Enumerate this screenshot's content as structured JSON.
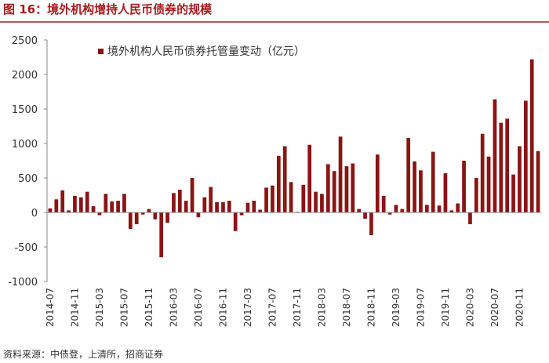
{
  "page_title": "图 16：境外机构增持人民币债券的规模",
  "source": "资料来源：中债登，上清所，招商证券",
  "chart_data": {
    "type": "bar",
    "categories": [
      "2014-07",
      null,
      null,
      null,
      "2014-11",
      null,
      null,
      null,
      "2015-03",
      null,
      null,
      null,
      "2015-07",
      null,
      null,
      null,
      "2015-11",
      null,
      null,
      null,
      "2016-03",
      null,
      null,
      null,
      "2016-07",
      null,
      null,
      null,
      "2016-11",
      null,
      null,
      null,
      "2017-03",
      null,
      null,
      null,
      "2017-07",
      null,
      null,
      null,
      "2017-11",
      null,
      null,
      null,
      "2018-03",
      null,
      null,
      null,
      "2018-07",
      null,
      null,
      null,
      "2018-11",
      null,
      null,
      null,
      "2019-03",
      null,
      null,
      null,
      "2019-07",
      null,
      null,
      null,
      "2019-11",
      null,
      null,
      null,
      "2020-03",
      null,
      null,
      null,
      "2020-07",
      null,
      null,
      null,
      "2020-11",
      null,
      null,
      null
    ],
    "series": [
      {
        "name": "境外机构人民币债券托管量变动（亿元）",
        "color": "#8b1414",
        "values": [
          60,
          190,
          320,
          30,
          240,
          220,
          300,
          90,
          -40,
          270,
          160,
          170,
          270,
          -240,
          -170,
          -30,
          50,
          -100,
          -650,
          -150,
          280,
          330,
          170,
          500,
          -70,
          220,
          370,
          150,
          150,
          170,
          -270,
          -40,
          140,
          170,
          40,
          360,
          390,
          820,
          960,
          440,
          10,
          400,
          980,
          300,
          270,
          700,
          600,
          1100,
          670,
          710,
          50,
          -90,
          -330,
          840,
          240,
          -30,
          110,
          50,
          1080,
          740,
          610,
          110,
          880,
          100,
          570,
          30,
          130,
          750,
          -170,
          500,
          1140,
          810,
          1640,
          1300,
          1360,
          550,
          960,
          1620,
          2220,
          890
        ]
      }
    ],
    "ylim": [
      -1000,
      2500
    ],
    "yticks": [
      -1000,
      -500,
      0,
      500,
      1000,
      1500,
      2000,
      2500
    ],
    "legend": "upper left"
  }
}
